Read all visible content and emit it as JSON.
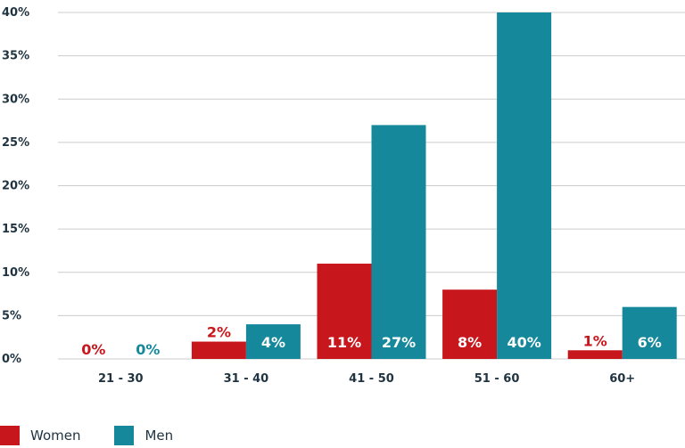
{
  "chart_data": {
    "type": "bar",
    "categories": [
      "21 - 30",
      "31 - 40",
      "41 - 50",
      "51 - 60",
      "60+"
    ],
    "series": [
      {
        "name": "Women",
        "color": "#c8161d",
        "values": [
          0,
          2,
          11,
          8,
          1
        ],
        "labels": [
          "0%",
          "2%",
          "11%",
          "8%",
          "1%"
        ]
      },
      {
        "name": "Men",
        "color": "#15899b",
        "values": [
          0,
          4,
          27,
          40,
          6
        ],
        "labels": [
          "0%",
          "4%",
          "27%",
          "40%",
          "6%"
        ]
      }
    ],
    "ylim": [
      0,
      40
    ],
    "yticks": [
      0,
      5,
      10,
      15,
      20,
      25,
      30,
      35,
      40
    ],
    "ytick_labels": [
      "0%",
      "5%",
      "10%",
      "15%",
      "20%",
      "25%",
      "30%",
      "35%",
      "40%"
    ],
    "grid": true,
    "legend_position": "bottom-left"
  }
}
